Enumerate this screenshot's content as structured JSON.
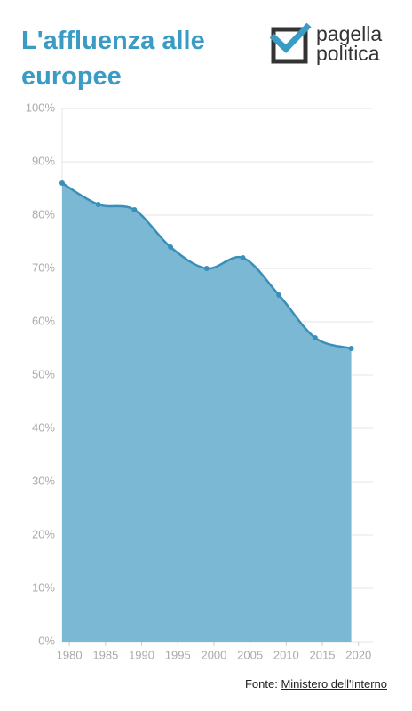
{
  "title": "L'affluenza alle europee",
  "logo": [
    "pagella",
    "politica"
  ],
  "source": {
    "prefix": "Fonte:",
    "link": "Ministero dell'Interno"
  },
  "chart_data": {
    "type": "area",
    "x": [
      1979,
      1984,
      1989,
      1994,
      1999,
      2004,
      2009,
      2014,
      2019
    ],
    "values": [
      86,
      82,
      81,
      74,
      70,
      72,
      65,
      57,
      55
    ],
    "color": "#3a8fba",
    "fill": "#7ab8d4",
    "xlim": [
      1979,
      2022
    ],
    "xticks": [
      1980,
      1985,
      1990,
      1995,
      2000,
      2005,
      2010,
      2015,
      2020
    ],
    "ylim": [
      0,
      100
    ],
    "yticks": [
      {
        "value": 0,
        "label": "0%"
      },
      {
        "value": 10,
        "label": "10%"
      },
      {
        "value": 20,
        "label": "20%"
      },
      {
        "value": 30,
        "label": "30%"
      },
      {
        "value": 40,
        "label": "40%"
      },
      {
        "value": 50,
        "label": "50%"
      },
      {
        "value": 60,
        "label": "60%"
      },
      {
        "value": 70,
        "label": "70%"
      },
      {
        "value": 80,
        "label": "80%"
      },
      {
        "value": 90,
        "label": "90%"
      },
      {
        "value": 100,
        "label": "100%"
      }
    ],
    "grid": true
  }
}
